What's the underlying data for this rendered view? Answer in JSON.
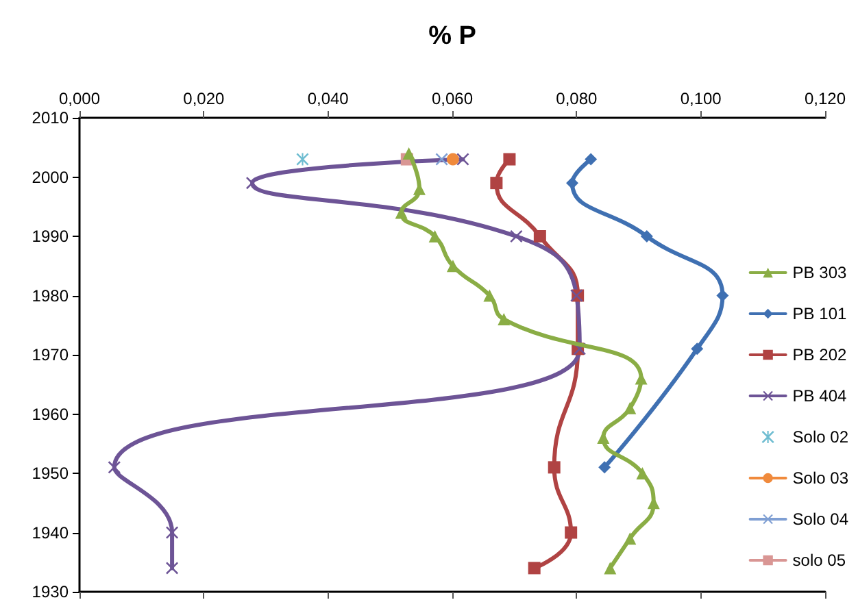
{
  "chart_data": {
    "type": "line",
    "xlabel": "% P",
    "xlim": [
      0,
      0.12
    ],
    "xticks": [
      {
        "value": 0,
        "label": "0,000"
      },
      {
        "value": 0.02,
        "label": "0,020"
      },
      {
        "value": 0.04,
        "label": "0,040"
      },
      {
        "value": 0.06,
        "label": "0,060"
      },
      {
        "value": 0.08,
        "label": "0,080"
      },
      {
        "value": 0.1,
        "label": "0,100"
      },
      {
        "value": 0.12,
        "label": "0,120"
      }
    ],
    "ylim": [
      1930,
      2010
    ],
    "yticks": [
      1930,
      1940,
      1950,
      1960,
      1970,
      1980,
      1990,
      2000,
      2010
    ],
    "grid": false,
    "legend": "right",
    "series": [
      {
        "name": "PB 303",
        "color": "#8aad45",
        "marker": "triangle",
        "x": [
          0.053,
          0.0547,
          0.0518,
          0.0572,
          0.0601,
          0.066,
          0.0683,
          0.0904,
          0.0886,
          0.0843,
          0.0906,
          0.0924,
          0.0886,
          0.0854
        ],
        "values": [
          2004,
          1998,
          1994,
          1990,
          1985,
          1980,
          1976,
          1966,
          1961,
          1956,
          1950,
          1945,
          1939,
          1934
        ]
      },
      {
        "name": "PB 101",
        "color": "#3f70b2",
        "marker": "diamond",
        "x": [
          0.0823,
          0.0793,
          0.0913,
          0.1035,
          0.0994,
          0.0845
        ],
        "values": [
          2003,
          1999,
          1990,
          1980,
          1971,
          1951
        ]
      },
      {
        "name": "PB 202",
        "color": "#b04343",
        "marker": "square",
        "x": [
          0.0692,
          0.0671,
          0.0741,
          0.0802,
          0.0802,
          0.0764,
          0.0791,
          0.0732
        ],
        "values": [
          2003,
          1999,
          1990,
          1980,
          1971,
          1951,
          1940,
          1934
        ]
      },
      {
        "name": "PB 404",
        "color": "#6d5496",
        "marker": "cross",
        "x": [
          0.0617,
          0.0278,
          0.0703,
          0.08,
          0.0805,
          0.0056,
          0.0149,
          0.0149
        ],
        "values": [
          2003,
          1999,
          1990,
          1980,
          1971,
          1951,
          1940,
          1934
        ]
      },
      {
        "name": "Solo 02",
        "type": "scatter",
        "color": "#4bacc6",
        "marker": "star",
        "x": [
          0.0359
        ],
        "values": [
          2003
        ]
      },
      {
        "name": "Solo 03",
        "color": "#f08a3c",
        "marker": "circle",
        "x": [
          0.0601
        ],
        "values": [
          2003
        ]
      },
      {
        "name": "Solo 04",
        "color": "#7f9fd3",
        "marker": "cross",
        "x": [
          0.0583
        ],
        "values": [
          2003
        ]
      },
      {
        "name": "solo 05",
        "color": "#d99694",
        "marker": "square",
        "x": [
          0.0527
        ],
        "values": [
          2003
        ]
      }
    ]
  }
}
